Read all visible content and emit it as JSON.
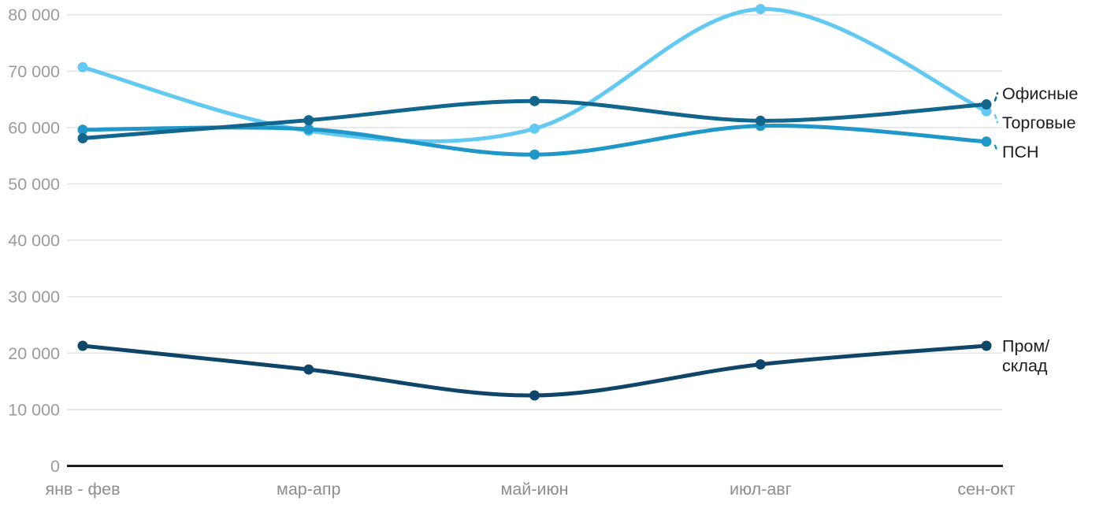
{
  "chart_data": {
    "type": "line",
    "title": "",
    "xlabel": "",
    "ylabel": "",
    "grid": "horizontal",
    "legend_position": "right-inline",
    "categories": [
      "янв - фев",
      "мар-апр",
      "май-июн",
      "июл-авг",
      "сен-окт"
    ],
    "y_axis": {
      "min": 0,
      "max": 80000,
      "step": 10000,
      "tick_labels": [
        "0",
        "10 000",
        "20 000",
        "30 000",
        "40 000",
        "50 000",
        "60 000",
        "70 000",
        "80 000"
      ]
    },
    "series": [
      {
        "name": "Торговые",
        "label_lines": [
          "Торговые"
        ],
        "color": "#61c9f2",
        "values": [
          70700,
          59400,
          59800,
          81000,
          62900
        ]
      },
      {
        "name": "ПСН",
        "label_lines": [
          "ПСН"
        ],
        "color": "#1f97c9",
        "values": [
          59600,
          59700,
          55200,
          60300,
          57500
        ]
      },
      {
        "name": "Офисные",
        "label_lines": [
          "Офисные"
        ],
        "color": "#12658c",
        "values": [
          58100,
          61300,
          64700,
          61200,
          64100
        ]
      },
      {
        "name": "Пром/склад",
        "label_lines": [
          "Пром/",
          "склад"
        ],
        "color": "#0e4568",
        "values": [
          21300,
          17100,
          12500,
          18000,
          21300
        ]
      }
    ]
  },
  "colors": {
    "gridline": "#e4e4e4",
    "axis_line": "#1c1c1c",
    "y_tick_label": "#9b9b9b",
    "x_tick_label": "#8d8d8d",
    "series_label": "#1c1c1c",
    "background": "#ffffff"
  }
}
